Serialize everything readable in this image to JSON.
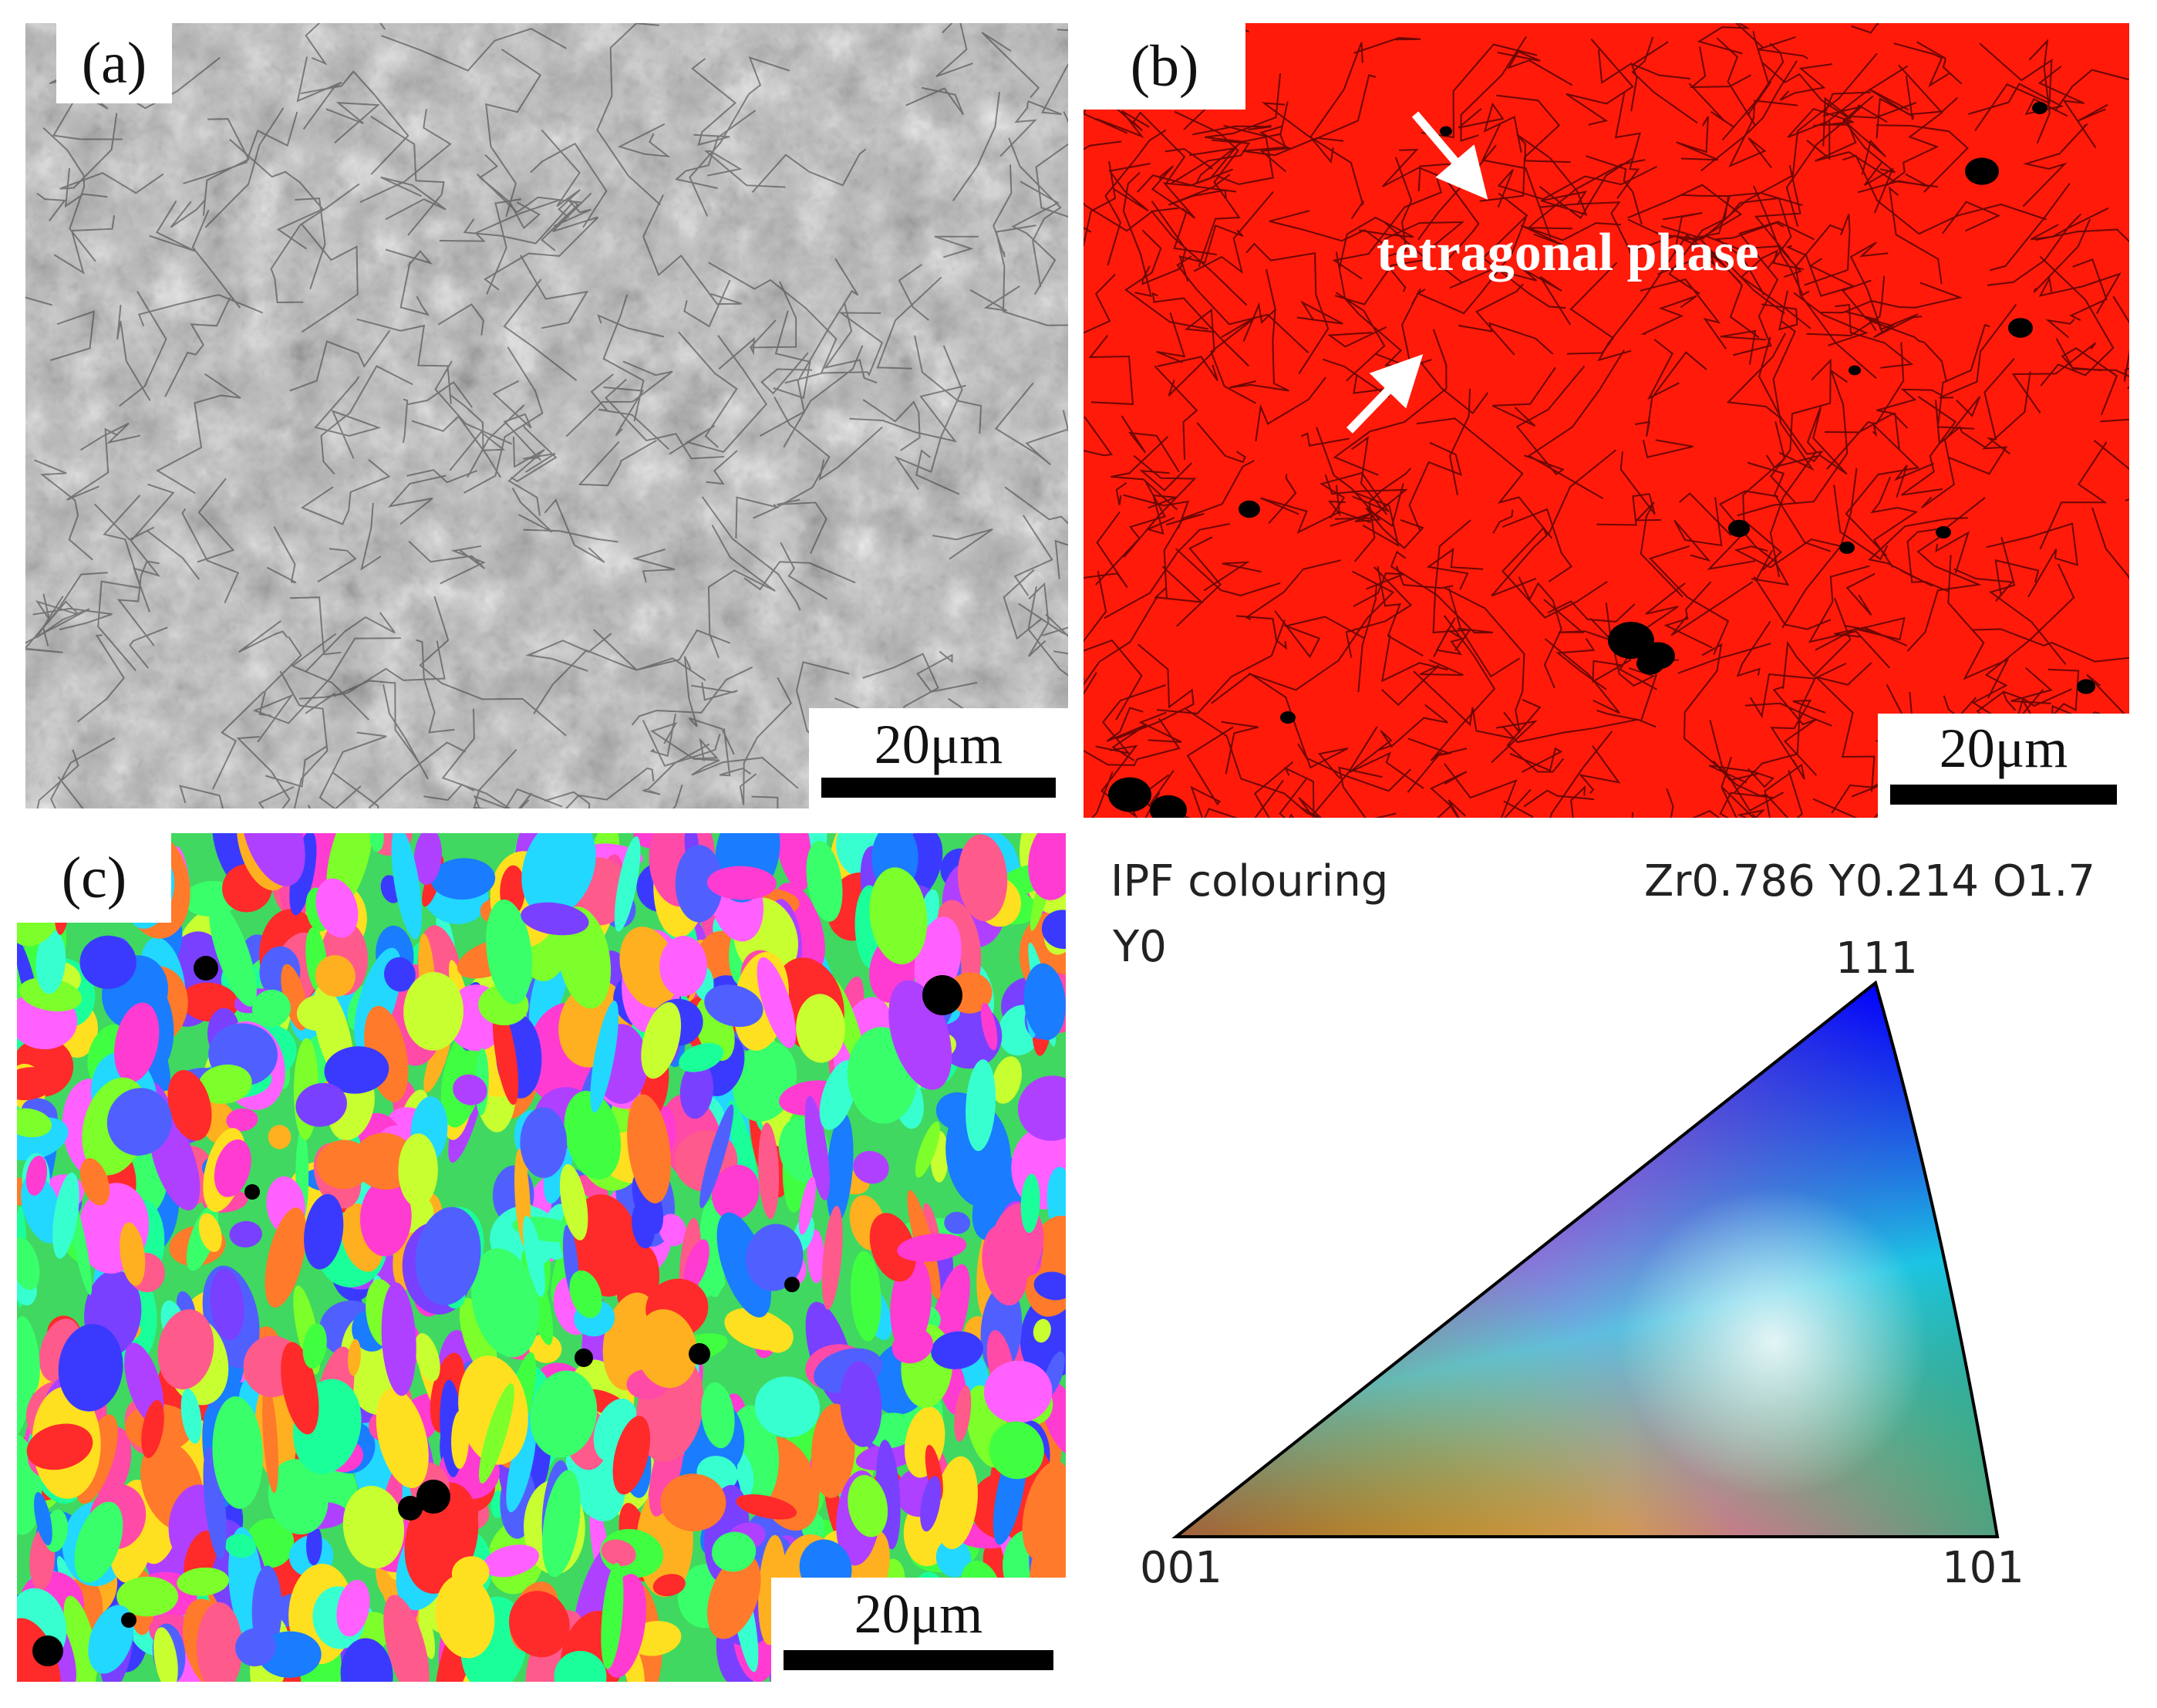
{
  "panel_a": {
    "label": "(a)",
    "scale_bar": "20μm"
  },
  "panel_b": {
    "label": "(b)",
    "scale_bar": "20μm",
    "annotation": "tetragonal phase"
  },
  "panel_c": {
    "label": "(c)",
    "scale_bar": "20μm"
  },
  "ipf_key": {
    "title": "IPF colouring",
    "phase": "Zr0.786 Y0.214 O1.7",
    "direction": "Y0",
    "corner_001": "001",
    "corner_101": "101",
    "corner_111": "111"
  },
  "colors": {
    "tetragonal_red": "#ff1a0a",
    "ipf_001": "#ff0000",
    "ipf_101": "#00ff00",
    "ipf_111": "#0000ff"
  }
}
